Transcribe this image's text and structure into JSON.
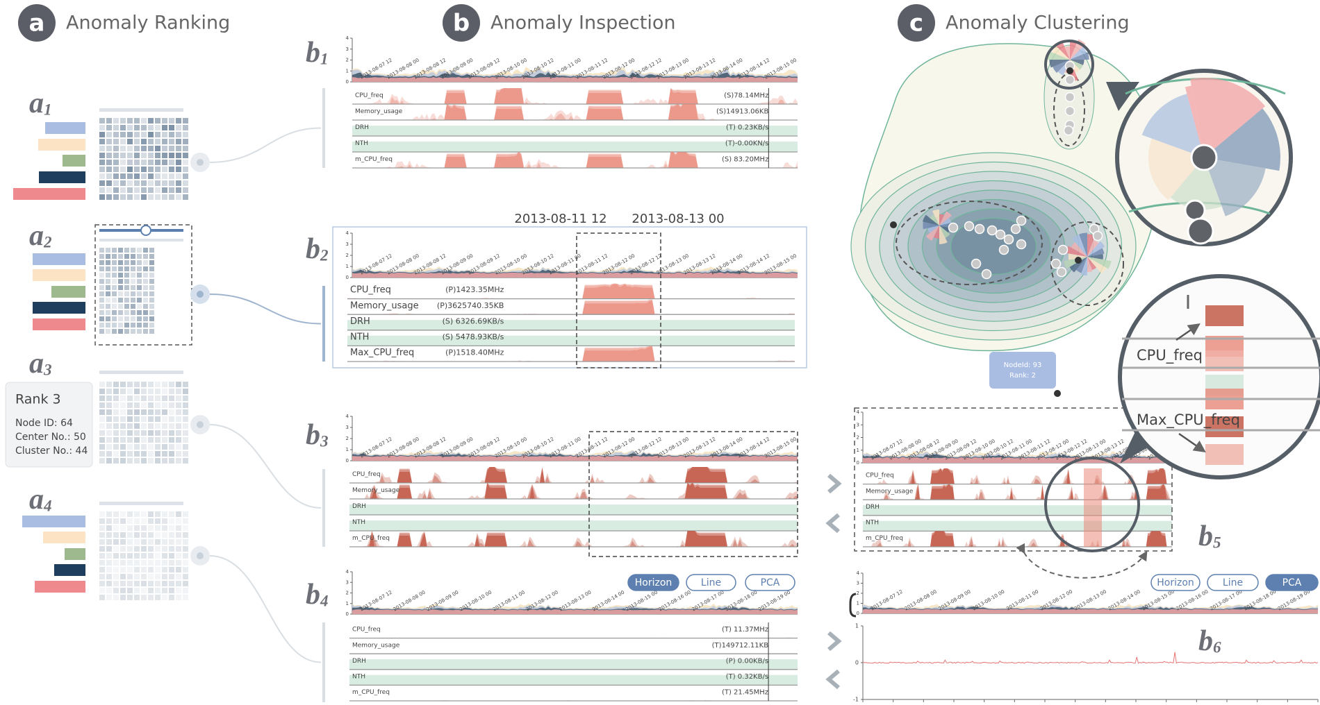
{
  "sections": [
    {
      "letter": "a",
      "title": "Anomaly Ranking"
    },
    {
      "letter": "b",
      "title": "Anomaly Inspection"
    },
    {
      "letter": "c",
      "title": "Anomaly Clustering"
    }
  ],
  "ranking": {
    "views": [
      {
        "letter": "a",
        "sub": "1"
      },
      {
        "letter": "a",
        "sub": "2"
      },
      {
        "letter": "a",
        "sub": "3"
      },
      {
        "letter": "a",
        "sub": "4"
      }
    ],
    "tooltip": {
      "title": "Rank 3",
      "lines": [
        "Node ID: 64",
        "Center No.: 50",
        "Cluster No.: 44"
      ]
    }
  },
  "inspection": {
    "yticks": [
      0,
      1,
      2,
      3,
      4
    ],
    "dates": [
      "2013-08-07 12",
      "2013-08-08 00",
      "2013-08-08 12",
      "2013-08-09 00",
      "2013-08-09 12",
      "2013-08-10 00",
      "2013-08-10 12",
      "2013-08-11 00",
      "2013-08-11 12",
      "2013-08-12 00",
      "2013-08-12 12",
      "2013-08-13 00",
      "2013-08-13 12",
      "2013-08-14 00",
      "2013-08-14 12",
      "2013-08-15 00"
    ],
    "dates_long": [
      "2013-08-07 12",
      "2013-08-08 00",
      "2013-08-09 00",
      "2013-08-10 00",
      "2013-08-11 00",
      "2013-08-12 00",
      "2013-08-13 00",
      "2013-08-14 00",
      "2013-08-15 00",
      "2013-08-16 00",
      "2013-08-17 00",
      "2013-08-18 00",
      "2013-08-19 00"
    ],
    "range": [
      "2013-08-11 12",
      "2013-08-13 00"
    ],
    "buttons": [
      "Horizon",
      "Line",
      "PCA"
    ],
    "panels": [
      {
        "letter": "b",
        "sub": "1",
        "metrics": [
          {
            "name": "CPU_freq",
            "value": "(S)78.14MHz"
          },
          {
            "name": "Memory_usage",
            "value": "(S)14913.06KB"
          },
          {
            "name": "DRH",
            "value": "(T) 0.23KB/s"
          },
          {
            "name": "NTH",
            "value": "(T)-0.00KN/s"
          },
          {
            "name": "m_CPU_freq",
            "value": "(S) 83.20MHz"
          }
        ]
      },
      {
        "letter": "b",
        "sub": "2",
        "metrics": [
          {
            "name": "CPU_freq",
            "value": "(P)1423.35MHz"
          },
          {
            "name": "Memory_usage",
            "value": "(P)3625740.35KB"
          },
          {
            "name": "DRH",
            "value": "(S) 6326.69KB/s"
          },
          {
            "name": "NTH",
            "value": "(S) 5478.93KB/s"
          },
          {
            "name": "Max_CPU_freq",
            "value": "(P)1518.40MHz"
          }
        ]
      },
      {
        "letter": "b",
        "sub": "3",
        "metrics": [
          {
            "name": "CPU_freq"
          },
          {
            "name": "Memory_usage"
          },
          {
            "name": "DRH"
          },
          {
            "name": "NTH"
          },
          {
            "name": "m_CPU_freq"
          }
        ]
      },
      {
        "letter": "b",
        "sub": "4",
        "metrics": [
          {
            "name": "CPU_freq",
            "value": "(T) 11.37MHz"
          },
          {
            "name": "Memory_usage",
            "value": "(T)149712.11KB"
          },
          {
            "name": "DRH",
            "value": "(P) 0.00KB/s"
          },
          {
            "name": "NTH",
            "value": "(T) 0.32KB/s"
          },
          {
            "name": "m_CPU_freq",
            "value": "(T) 21.45MHz"
          }
        ]
      }
    ]
  },
  "clustering": {
    "tooltip": [
      "NodeId: 93",
      "Rank: 2"
    ],
    "zoom_labels": [
      "CPU_freq",
      "Max_CPU_freq"
    ],
    "b5": {
      "letter": "b",
      "sub": "5",
      "metrics": [
        {
          "name": "CPU_freq"
        },
        {
          "name": "Memory_usage"
        },
        {
          "name": "DRH"
        },
        {
          "name": "NTH"
        },
        {
          "name": "m_CPU_freq"
        }
      ]
    },
    "b6": {
      "letter": "b",
      "sub": "6",
      "yticks": [
        -1,
        0,
        1
      ]
    }
  }
}
